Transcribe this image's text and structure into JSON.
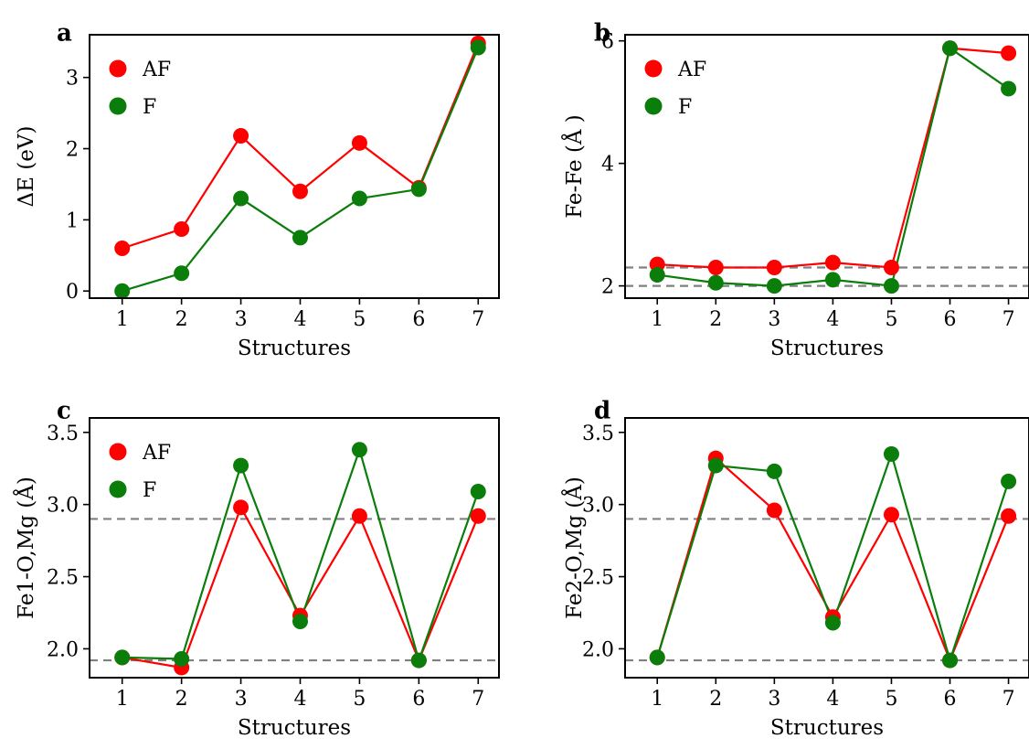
{
  "chart_data": [
    {
      "type": "line",
      "panel": "a",
      "xlabel": "Structures",
      "ylabel": "ΔE (eV)",
      "x": [
        1,
        2,
        3,
        4,
        5,
        6,
        7
      ],
      "xticks": [
        "1",
        "2",
        "3",
        "4",
        "5",
        "6",
        "7"
      ],
      "yticks": [
        0,
        1,
        2,
        3
      ],
      "ytick_labels": [
        "0",
        "1",
        "2",
        "3"
      ],
      "ylim": [
        -0.1,
        3.6
      ],
      "hlines": [],
      "legend": "top-left",
      "series": [
        {
          "name": "AF",
          "color": "#ff0000",
          "values": [
            0.6,
            0.87,
            2.18,
            1.4,
            2.08,
            1.45,
            3.48
          ]
        },
        {
          "name": "F",
          "color": "#0a7d0a",
          "values": [
            0.0,
            0.25,
            1.3,
            0.75,
            1.3,
            1.43,
            3.42
          ]
        }
      ]
    },
    {
      "type": "line",
      "panel": "b",
      "xlabel": "Structures",
      "ylabel": "Fe-Fe (Å )",
      "x": [
        1,
        2,
        3,
        4,
        5,
        6,
        7
      ],
      "xticks": [
        "1",
        "2",
        "3",
        "4",
        "5",
        "6",
        "7"
      ],
      "yticks": [
        2,
        4,
        6
      ],
      "ytick_labels": [
        "2",
        "4",
        "6"
      ],
      "ylim": [
        1.8,
        6.1
      ],
      "hlines": [
        2.0,
        2.3
      ],
      "legend": "top-left",
      "series": [
        {
          "name": "AF",
          "color": "#ff0000",
          "values": [
            2.35,
            2.3,
            2.3,
            2.38,
            2.3,
            5.88,
            5.8
          ]
        },
        {
          "name": "F",
          "color": "#0a7d0a",
          "values": [
            2.18,
            2.05,
            2.0,
            2.1,
            2.0,
            5.88,
            5.22
          ]
        }
      ]
    },
    {
      "type": "line",
      "panel": "c",
      "xlabel": "Structures",
      "ylabel": "Fe1-O,Mg (Å)",
      "x": [
        1,
        2,
        3,
        4,
        5,
        6,
        7
      ],
      "xticks": [
        "1",
        "2",
        "3",
        "4",
        "5",
        "6",
        "7"
      ],
      "yticks": [
        2.0,
        2.5,
        3.0,
        3.5
      ],
      "ytick_labels": [
        "2.0",
        "2.5",
        "3.0",
        "3.5"
      ],
      "ylim": [
        1.8,
        3.6
      ],
      "hlines": [
        1.92,
        2.9
      ],
      "legend": "top-left",
      "series": [
        {
          "name": "AF",
          "color": "#ff0000",
          "values": [
            1.94,
            1.87,
            2.98,
            2.23,
            2.92,
            1.92,
            2.92
          ]
        },
        {
          "name": "F",
          "color": "#0a7d0a",
          "values": [
            1.94,
            1.93,
            3.27,
            2.19,
            3.38,
            1.92,
            3.09
          ]
        }
      ]
    },
    {
      "type": "line",
      "panel": "d",
      "xlabel": "Structures",
      "ylabel": "Fe2-O,Mg (Å)",
      "x": [
        1,
        2,
        3,
        4,
        5,
        6,
        7
      ],
      "xticks": [
        "1",
        "2",
        "3",
        "4",
        "5",
        "6",
        "7"
      ],
      "yticks": [
        2.0,
        2.5,
        3.0,
        3.5
      ],
      "ytick_labels": [
        "2.0",
        "2.5",
        "3.0",
        "3.5"
      ],
      "ylim": [
        1.8,
        3.6
      ],
      "hlines": [
        1.92,
        2.9
      ],
      "legend": "none",
      "series": [
        {
          "name": "AF",
          "color": "#ff0000",
          "values": [
            1.94,
            3.32,
            2.96,
            2.22,
            2.93,
            1.92,
            2.92
          ]
        },
        {
          "name": "F",
          "color": "#0a7d0a",
          "values": [
            1.94,
            3.27,
            3.23,
            2.18,
            3.35,
            1.92,
            3.16
          ]
        }
      ]
    }
  ]
}
